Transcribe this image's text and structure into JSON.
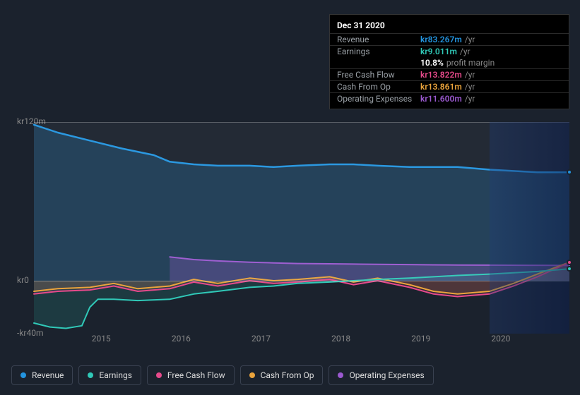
{
  "tooltip": {
    "title": "Dec 31 2020",
    "rows": [
      {
        "label": "Revenue",
        "value": "kr83.267m",
        "unit": "/yr",
        "color": "#2394df"
      },
      {
        "label": "Earnings",
        "value": "kr9.011m",
        "unit": "/yr",
        "color": "#30c9b8"
      },
      {
        "label": "",
        "value": "10.8%",
        "unit": "profit margin",
        "color": "#ffffff",
        "noborder": true
      },
      {
        "label": "Free Cash Flow",
        "value": "kr13.822m",
        "unit": "/yr",
        "color": "#e64a8b"
      },
      {
        "label": "Cash From Op",
        "value": "kr13.861m",
        "unit": "/yr",
        "color": "#eba43c"
      },
      {
        "label": "Operating Expenses",
        "value": "kr11.600m",
        "unit": "/yr",
        "color": "#9b59d0"
      }
    ]
  },
  "chart": {
    "type": "line-area",
    "background": "#1b222d",
    "grid_color": "rgba(255,255,255,0.08)",
    "y": {
      "min": -40,
      "max": 120,
      "ticks": [
        {
          "v": 120,
          "label": "kr120m"
        },
        {
          "v": 0,
          "label": "kr0"
        },
        {
          "v": -40,
          "label": "-kr40m"
        }
      ]
    },
    "x": {
      "min": 2014.3,
      "max": 2021.0,
      "ticks": [
        2015,
        2016,
        2017,
        2018,
        2019,
        2020
      ],
      "future_from": 2020.0
    },
    "series": [
      {
        "name": "Revenue",
        "color": "#2394df",
        "fill": "rgba(35,148,223,0.22)",
        "width": 2.5,
        "end_dot": true,
        "points": [
          [
            2014.3,
            118
          ],
          [
            2014.6,
            112
          ],
          [
            2015.0,
            106
          ],
          [
            2015.4,
            100
          ],
          [
            2015.8,
            95
          ],
          [
            2016.0,
            90
          ],
          [
            2016.3,
            88
          ],
          [
            2016.6,
            87
          ],
          [
            2017.0,
            87
          ],
          [
            2017.3,
            86
          ],
          [
            2017.6,
            87
          ],
          [
            2018.0,
            88
          ],
          [
            2018.3,
            88
          ],
          [
            2018.6,
            87
          ],
          [
            2019.0,
            86
          ],
          [
            2019.3,
            86
          ],
          [
            2019.6,
            86
          ],
          [
            2020.0,
            84
          ],
          [
            2020.3,
            83
          ],
          [
            2020.6,
            82
          ],
          [
            2021.0,
            82
          ]
        ]
      },
      {
        "name": "Operating Expenses",
        "color": "#9b59d0",
        "fill": "rgba(155,89,208,0.28)",
        "width": 2,
        "points": [
          [
            2016.0,
            18
          ],
          [
            2016.3,
            16
          ],
          [
            2016.6,
            15
          ],
          [
            2017.0,
            14
          ],
          [
            2017.3,
            13.5
          ],
          [
            2017.6,
            13
          ],
          [
            2018.0,
            12.8
          ],
          [
            2018.3,
            12.6
          ],
          [
            2018.6,
            12.4
          ],
          [
            2019.0,
            12.2
          ],
          [
            2019.3,
            12
          ],
          [
            2019.6,
            11.9
          ],
          [
            2020.0,
            11.8
          ],
          [
            2020.5,
            11.7
          ],
          [
            2021.0,
            11.6
          ]
        ]
      },
      {
        "name": "Cash From Op",
        "color": "#eba43c",
        "fill": "rgba(235,164,60,0.15)",
        "width": 2,
        "end_dot": true,
        "points": [
          [
            2014.3,
            -8
          ],
          [
            2014.6,
            -6
          ],
          [
            2015.0,
            -5
          ],
          [
            2015.3,
            -2
          ],
          [
            2015.6,
            -6
          ],
          [
            2016.0,
            -4
          ],
          [
            2016.3,
            1
          ],
          [
            2016.6,
            -2
          ],
          [
            2017.0,
            2
          ],
          [
            2017.3,
            0
          ],
          [
            2017.6,
            1
          ],
          [
            2018.0,
            3
          ],
          [
            2018.3,
            -1
          ],
          [
            2018.6,
            2
          ],
          [
            2019.0,
            -3
          ],
          [
            2019.3,
            -8
          ],
          [
            2019.6,
            -10
          ],
          [
            2020.0,
            -8
          ],
          [
            2020.3,
            -2
          ],
          [
            2020.6,
            5
          ],
          [
            2021.0,
            14
          ]
        ]
      },
      {
        "name": "Free Cash Flow",
        "color": "#e64a8b",
        "fill": "rgba(230,74,139,0.12)",
        "width": 2,
        "end_dot": true,
        "points": [
          [
            2014.3,
            -10
          ],
          [
            2014.6,
            -8
          ],
          [
            2015.0,
            -7
          ],
          [
            2015.3,
            -4
          ],
          [
            2015.6,
            -8
          ],
          [
            2016.0,
            -6
          ],
          [
            2016.3,
            -1
          ],
          [
            2016.6,
            -4
          ],
          [
            2017.0,
            0
          ],
          [
            2017.3,
            -2
          ],
          [
            2017.6,
            -1
          ],
          [
            2018.0,
            1
          ],
          [
            2018.3,
            -3
          ],
          [
            2018.6,
            0
          ],
          [
            2019.0,
            -5
          ],
          [
            2019.3,
            -10
          ],
          [
            2019.6,
            -12
          ],
          [
            2020.0,
            -10
          ],
          [
            2020.3,
            -4
          ],
          [
            2020.6,
            3
          ],
          [
            2021.0,
            13.8
          ]
        ]
      },
      {
        "name": "Earnings",
        "color": "#30c9b8",
        "fill": "rgba(48,201,184,0.15)",
        "width": 2,
        "end_dot": true,
        "points": [
          [
            2014.3,
            -32
          ],
          [
            2014.5,
            -35
          ],
          [
            2014.7,
            -36
          ],
          [
            2014.9,
            -34
          ],
          [
            2015.0,
            -20
          ],
          [
            2015.1,
            -14
          ],
          [
            2015.3,
            -14
          ],
          [
            2015.6,
            -15
          ],
          [
            2016.0,
            -14
          ],
          [
            2016.3,
            -10
          ],
          [
            2016.6,
            -8
          ],
          [
            2017.0,
            -5
          ],
          [
            2017.3,
            -4
          ],
          [
            2017.6,
            -2
          ],
          [
            2018.0,
            -1
          ],
          [
            2018.3,
            0
          ],
          [
            2018.6,
            1
          ],
          [
            2019.0,
            2
          ],
          [
            2019.3,
            3
          ],
          [
            2019.6,
            4
          ],
          [
            2020.0,
            5
          ],
          [
            2020.3,
            6
          ],
          [
            2020.6,
            7
          ],
          [
            2021.0,
            9
          ]
        ]
      }
    ],
    "legend": [
      {
        "label": "Revenue",
        "color": "#2394df"
      },
      {
        "label": "Earnings",
        "color": "#30c9b8"
      },
      {
        "label": "Free Cash Flow",
        "color": "#e64a8b"
      },
      {
        "label": "Cash From Op",
        "color": "#eba43c"
      },
      {
        "label": "Operating Expenses",
        "color": "#9b59d0"
      }
    ]
  }
}
